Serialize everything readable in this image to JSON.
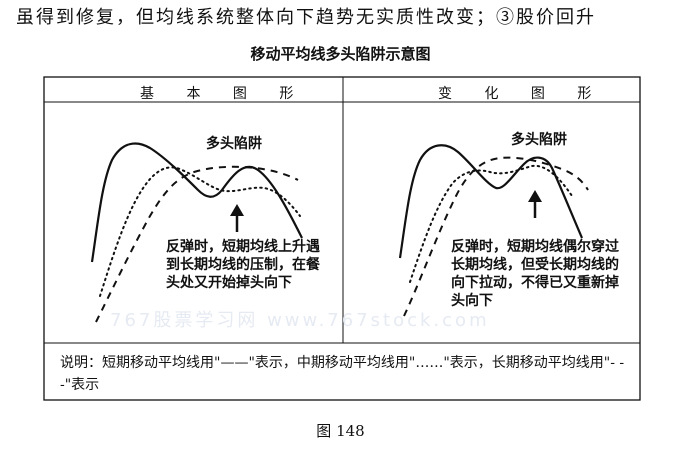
{
  "header_text": "虽得到修复，但均线系统整体向下趋势无实质性改变；③股价回升",
  "figure_title": "移动平均线多头陷阱示意图",
  "panels": [
    {
      "header": "基 本 图 形",
      "label": "多头陷阱",
      "annotation": "反弹时，短期均线上升遇到长期均线的压制，在餐头处又开始掉头向下"
    },
    {
      "header": "变 化 图 形",
      "label": "多头陷阱",
      "annotation": "反弹时，短期均线偶尔穿过长期均线，但受长期均线的向下拉动，不得已又重新掉头向下"
    }
  ],
  "legend_note": "说明：短期移动平均线用\"——\"表示，中期移动平均线用\"……\"表示，长期移动平均线用\"- - -\"表示",
  "caption": "图 148",
  "watermark": "767股票学习网 www.767stock.com"
}
